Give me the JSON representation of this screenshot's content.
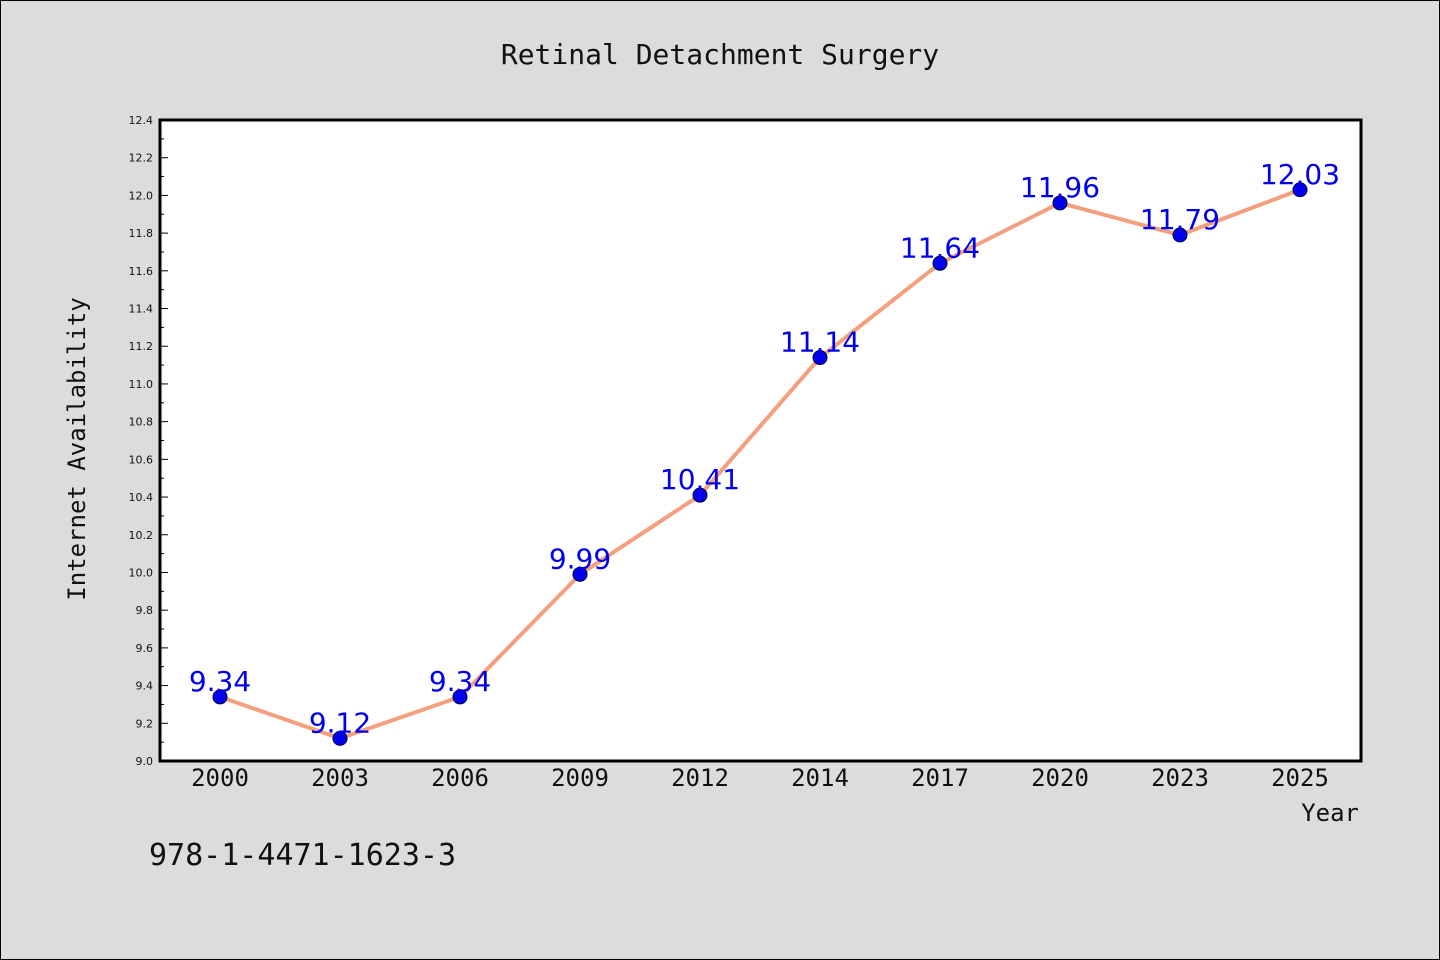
{
  "chart_data": {
    "type": "line",
    "title": "Retinal Detachment Surgery",
    "xlabel": "Year",
    "ylabel": "Internet Availability",
    "categories": [
      "2000",
      "2003",
      "2006",
      "2009",
      "2012",
      "2014",
      "2017",
      "2020",
      "2023",
      "2025"
    ],
    "series": [
      {
        "values": [
          9.34,
          9.12,
          9.34,
          9.99,
          10.41,
          11.14,
          11.64,
          11.96,
          11.79,
          12.03
        ]
      }
    ],
    "data_labels": [
      "9.34",
      "9.12",
      "9.34",
      "9.99",
      "10.41",
      "11.14",
      "11.64",
      "11.96",
      "11.79",
      "12.03"
    ],
    "ylim": [
      9.0,
      12.4
    ],
    "yticks": [
      "9.0",
      "9.2",
      "9.4",
      "9.6",
      "9.8",
      "10.0",
      "10.2",
      "10.4",
      "10.6",
      "10.8",
      "11.0",
      "11.2",
      "11.4",
      "11.6",
      "11.8",
      "12.0",
      "12.2",
      "12.4"
    ],
    "grid": false,
    "legend": "none",
    "colors": {
      "line": "#f4a07e",
      "marker": "#0000ee",
      "marker_edge": "#000033",
      "label": "#0000ee",
      "background": "#dcdcdc",
      "plot_area": "#ffffff"
    }
  },
  "footer": {
    "isbn": "978-1-4471-1623-3"
  }
}
